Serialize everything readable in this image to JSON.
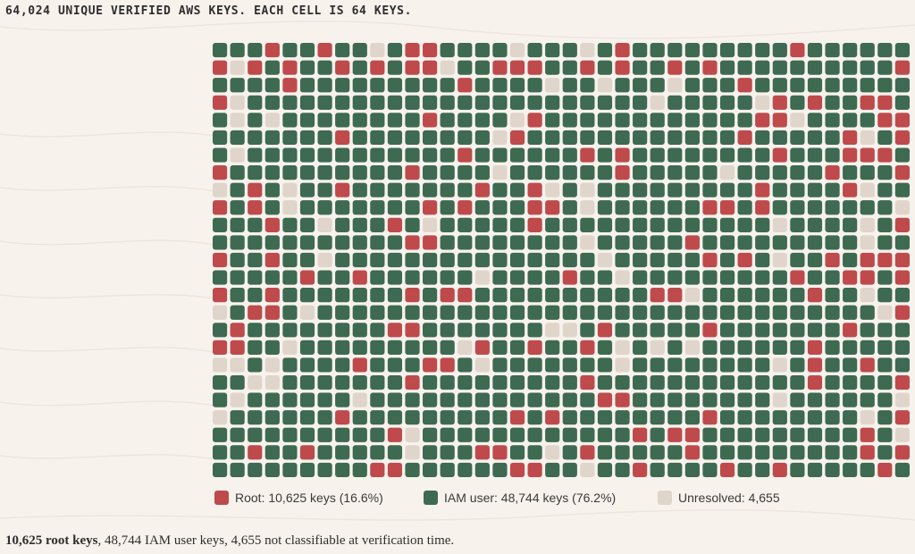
{
  "title": "64,024 UNIQUE VERIFIED AWS KEYS. EACH CELL IS 64 KEYS.",
  "colors": {
    "background": "#f8f2ed",
    "root": "#be4a4c",
    "iam": "#3d6a51",
    "unresolved": "#e0d5cb"
  },
  "legend": {
    "root": "Root: 10,625 keys (16.6%)",
    "iam": "IAM user: 48,744 keys (76.2%)",
    "unresolved": "Unresolved: 4,655"
  },
  "caption": {
    "bold": "10,625 root keys",
    "rest": ", 48,744 IAM user keys, 4,655 not classifiable at verification time."
  },
  "chart_data": {
    "type": "waffle",
    "title": "64,024 UNIQUE VERIFIED AWS KEYS. EACH CELL IS 64 KEYS.",
    "keys_per_cell": 64,
    "total_keys": 64024,
    "columns": 40,
    "rows": 25,
    "categories": [
      {
        "name": "Root",
        "keys": 10625,
        "percent": 16.6,
        "code": "R"
      },
      {
        "name": "IAM user",
        "keys": 48744,
        "percent": 76.2,
        "code": "I"
      },
      {
        "name": "Unresolved",
        "keys": 4655,
        "code": "U"
      }
    ],
    "grid_rows": [
      "IIIRIIRIIUIRRIIIIUIIIUIRIIIIIIIIIRIIIIII",
      "RURIRIIRIRIRRUIIRRRIIRIRIIRIRIIIIIIIIIIR",
      "IIIIRIIIIIIIIIRIIIIUIIUIIIUIIIRIIIIIIIII",
      "RUIIIIIIIIIIIIIIIIIIIIIIIUIIIIIURIRIIRRI",
      "IUIUIIIIIIIIRIIIIURIIIIIIIIIIIIRRUIIIIRR",
      "IIIIIIIRIIIIIIIIURIIIIIIIIIIIIRIIIIIRUIR",
      "IUIIIIIIIIIIIIRIIIIIIRIRIIIIIIIIRIIIRRRI",
      "RIIIIIIIIIIRIIIIUIIIIIIRIIIIIUIIIIIRIIIR",
      "UIRIUIIRIIIIIIIRIIRUIUIIIIIIIIIRIIIIRUII",
      "RIRIUIIIIIIIRIRIIIRRIUIIIIIIRRIRIIIIIIIU",
      "IIIRIIUIIIRIUIIIIIRIIIIIIIIIIIIIUIIIIUIR",
      "IIIIIIIIIIIRRIIIIIIIIUIIIIIRIIIIIIIIIUII",
      "RIIRIIUIIIIIIIIIIIIIIIUIIIIIRIRIUIIRIRRR",
      "IIIIIRIIRIIIIIIUIIIIRIIUIIIIIIIIIRIIRRIR",
      "RIIRIIIIIIIRIRRIIIIIIIIIIRRUIIIIIIRIIUII",
      "UIRRIUIIIIIIIIIIIIIIIIIIIIIIIIIIIIIIIIUR",
      "IRIIIIIIIIRRIIIIIIIUUIRIIIIIRIIIIIIIRIII",
      "RRIIUIIIIIIIIIURIIRIIRIUIUIUIIIIIIRIIIII",
      "UUIUIIIIRIIIRRIUIIIIIIIUIIIIIIIIUIRIIRII",
      "IIUUIIIIIIIRIIIIIIIIIRIIIIIIIIIIIIRIIIIR",
      "IUIIIIIIUIIIIIIIIIIIIIRRIIIIIIIIUIIIIIIU",
      "UIIIIIIRIIIIIIIIIRIRIIIIIIIIRIIIIIIIIUIR",
      "IIIIIIIIIIRUIIIIIIIIIIIIRIRRIIIIIIIIIRIU",
      "IIRIIRIIIIIUIIIRRIIUIRIIIIIRIIIIIIIIIRIR",
      "IIIIIIIIIRRIIIIIIRRIIUIIRIIIIRIIRIIIIIRI"
    ]
  }
}
